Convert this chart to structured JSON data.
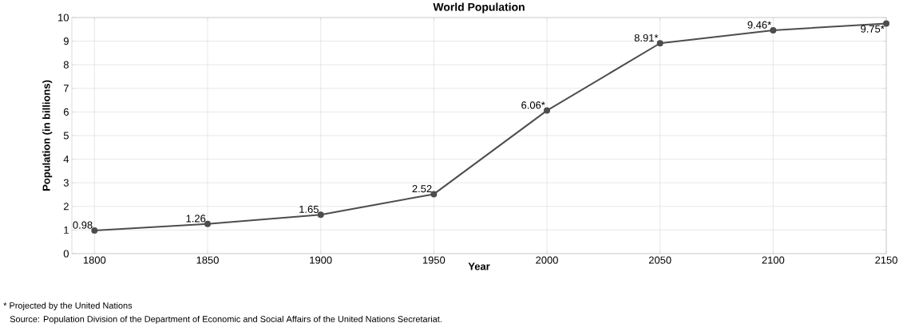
{
  "chart_data": {
    "type": "line",
    "title": "World Population",
    "xlabel": "Year",
    "ylabel": "Population (in billions)",
    "x": [
      1800,
      1850,
      1900,
      1950,
      2000,
      2050,
      2100,
      2150
    ],
    "values": [
      0.98,
      1.26,
      1.65,
      2.52,
      6.06,
      8.91,
      9.46,
      9.75
    ],
    "value_labels": [
      "0.98",
      "1.26",
      "1.65",
      "2.52",
      "6.06*",
      "8.91*",
      "9.46*",
      "9.75*"
    ],
    "color": "#4d4d4d",
    "marker": "circle",
    "grid": true,
    "xlim": [
      1790,
      2150
    ],
    "ylim": [
      0,
      10
    ],
    "xticks": [
      1800,
      1850,
      1900,
      1950,
      2000,
      2050,
      2100,
      2150
    ],
    "yticks": [
      0,
      1,
      2,
      3,
      4,
      5,
      6,
      7,
      8,
      9,
      10
    ],
    "annotations": [
      "* Projected by the United Nations",
      "Source: Population Division of the Department of Economic and Social Affairs of the United Nations Secretariat."
    ]
  }
}
